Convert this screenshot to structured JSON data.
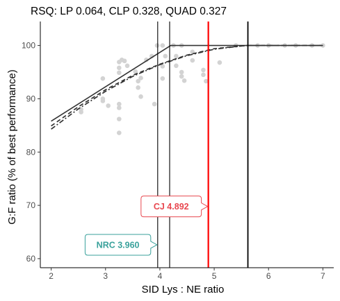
{
  "chart_data": {
    "type": "scatter",
    "title": "RSQ: LP 0.064, CLP 0.328, QUAD 0.327",
    "xlabel": "SID Lys : NE ratio",
    "ylabel": "G:F ratio (% of best performance)",
    "xlim": [
      1.8,
      7.2
    ],
    "ylim": [
      58.3,
      104.5
    ],
    "x_ticks": [
      2,
      3,
      4,
      5,
      6,
      7
    ],
    "y_ticks": [
      60,
      70,
      80,
      90,
      100
    ],
    "grid": false,
    "points": [
      {
        "x": 2.55,
        "y": 87.5
      },
      {
        "x": 2.55,
        "y": 88.0
      },
      {
        "x": 2.95,
        "y": 93.8
      },
      {
        "x": 2.95,
        "y": 90.0
      },
      {
        "x": 2.95,
        "y": 89.6
      },
      {
        "x": 3.05,
        "y": 88.7
      },
      {
        "x": 3.25,
        "y": 96.9
      },
      {
        "x": 3.25,
        "y": 95.8
      },
      {
        "x": 3.25,
        "y": 94.9
      },
      {
        "x": 3.25,
        "y": 89.0
      },
      {
        "x": 3.25,
        "y": 88.3
      },
      {
        "x": 3.25,
        "y": 86.2
      },
      {
        "x": 3.25,
        "y": 83.6
      },
      {
        "x": 3.3,
        "y": 97.3
      },
      {
        "x": 3.35,
        "y": 97.1
      },
      {
        "x": 3.4,
        "y": 96.2
      },
      {
        "x": 3.55,
        "y": 95.1
      },
      {
        "x": 3.6,
        "y": 93.3
      },
      {
        "x": 3.6,
        "y": 92.1
      },
      {
        "x": 3.65,
        "y": 90.4
      },
      {
        "x": 3.65,
        "y": 93.9
      },
      {
        "x": 3.75,
        "y": 97.3
      },
      {
        "x": 3.85,
        "y": 98.0
      },
      {
        "x": 3.9,
        "y": 89.0
      },
      {
        "x": 3.95,
        "y": 100.0
      },
      {
        "x": 4.05,
        "y": 100.0
      },
      {
        "x": 4.05,
        "y": 93.8
      },
      {
        "x": 4.05,
        "y": 96.1
      },
      {
        "x": 4.1,
        "y": 98.0
      },
      {
        "x": 4.25,
        "y": 100.0
      },
      {
        "x": 4.4,
        "y": 100.0
      },
      {
        "x": 4.3,
        "y": 98.0
      },
      {
        "x": 4.3,
        "y": 96.2
      },
      {
        "x": 4.4,
        "y": 95.0
      },
      {
        "x": 4.4,
        "y": 94.2
      },
      {
        "x": 4.45,
        "y": 93.4
      },
      {
        "x": 4.6,
        "y": 98.8
      },
      {
        "x": 4.6,
        "y": 97.2
      },
      {
        "x": 4.8,
        "y": 95.4
      },
      {
        "x": 4.8,
        "y": 94.5
      },
      {
        "x": 4.85,
        "y": 93.3
      },
      {
        "x": 5.1,
        "y": 96.8
      },
      {
        "x": 5.4,
        "y": 100.0
      },
      {
        "x": 5.8,
        "y": 100.0
      },
      {
        "x": 6.0,
        "y": 100.0
      },
      {
        "x": 6.3,
        "y": 100.0
      },
      {
        "x": 6.5,
        "y": 100.0
      },
      {
        "x": 6.8,
        "y": 100.0
      },
      {
        "x": 7.0,
        "y": 100.0
      }
    ],
    "series": [
      {
        "style": "solid",
        "x": [
          2,
          4.2,
          7
        ],
        "y": [
          85.8,
          100,
          100
        ]
      },
      {
        "style": "dashed",
        "x": [
          2,
          2.5,
          3,
          3.5,
          4,
          4.5,
          5,
          5.5,
          5.62,
          6,
          6.5,
          7
        ],
        "y": [
          84.9,
          88.5,
          91.7,
          94.4,
          96.5,
          98.2,
          99.4,
          99.9,
          100,
          100,
          100,
          100
        ]
      },
      {
        "style": "dashdot",
        "x": [
          2,
          2.5,
          3,
          3.5,
          4,
          4.5,
          5,
          5.5,
          5.6,
          6,
          6.5,
          7
        ],
        "y": [
          84.3,
          88.1,
          91.4,
          94.2,
          96.4,
          98.1,
          99.3,
          99.9,
          100,
          100,
          100,
          100
        ]
      }
    ],
    "vlines": [
      {
        "x": 3.96,
        "color": "#000000"
      },
      {
        "x": 4.18,
        "color": "#000000"
      },
      {
        "x": 4.892,
        "color": "#ff0000"
      },
      {
        "x": 5.62,
        "color": "#000000"
      }
    ],
    "annotations": [
      {
        "text": "CJ 4.892",
        "x": 4.892,
        "y": 69.8,
        "color": "#e8474f"
      },
      {
        "text": "NRC 3.960",
        "x": 3.96,
        "y": 62.6,
        "color": "#39a19b"
      }
    ]
  }
}
